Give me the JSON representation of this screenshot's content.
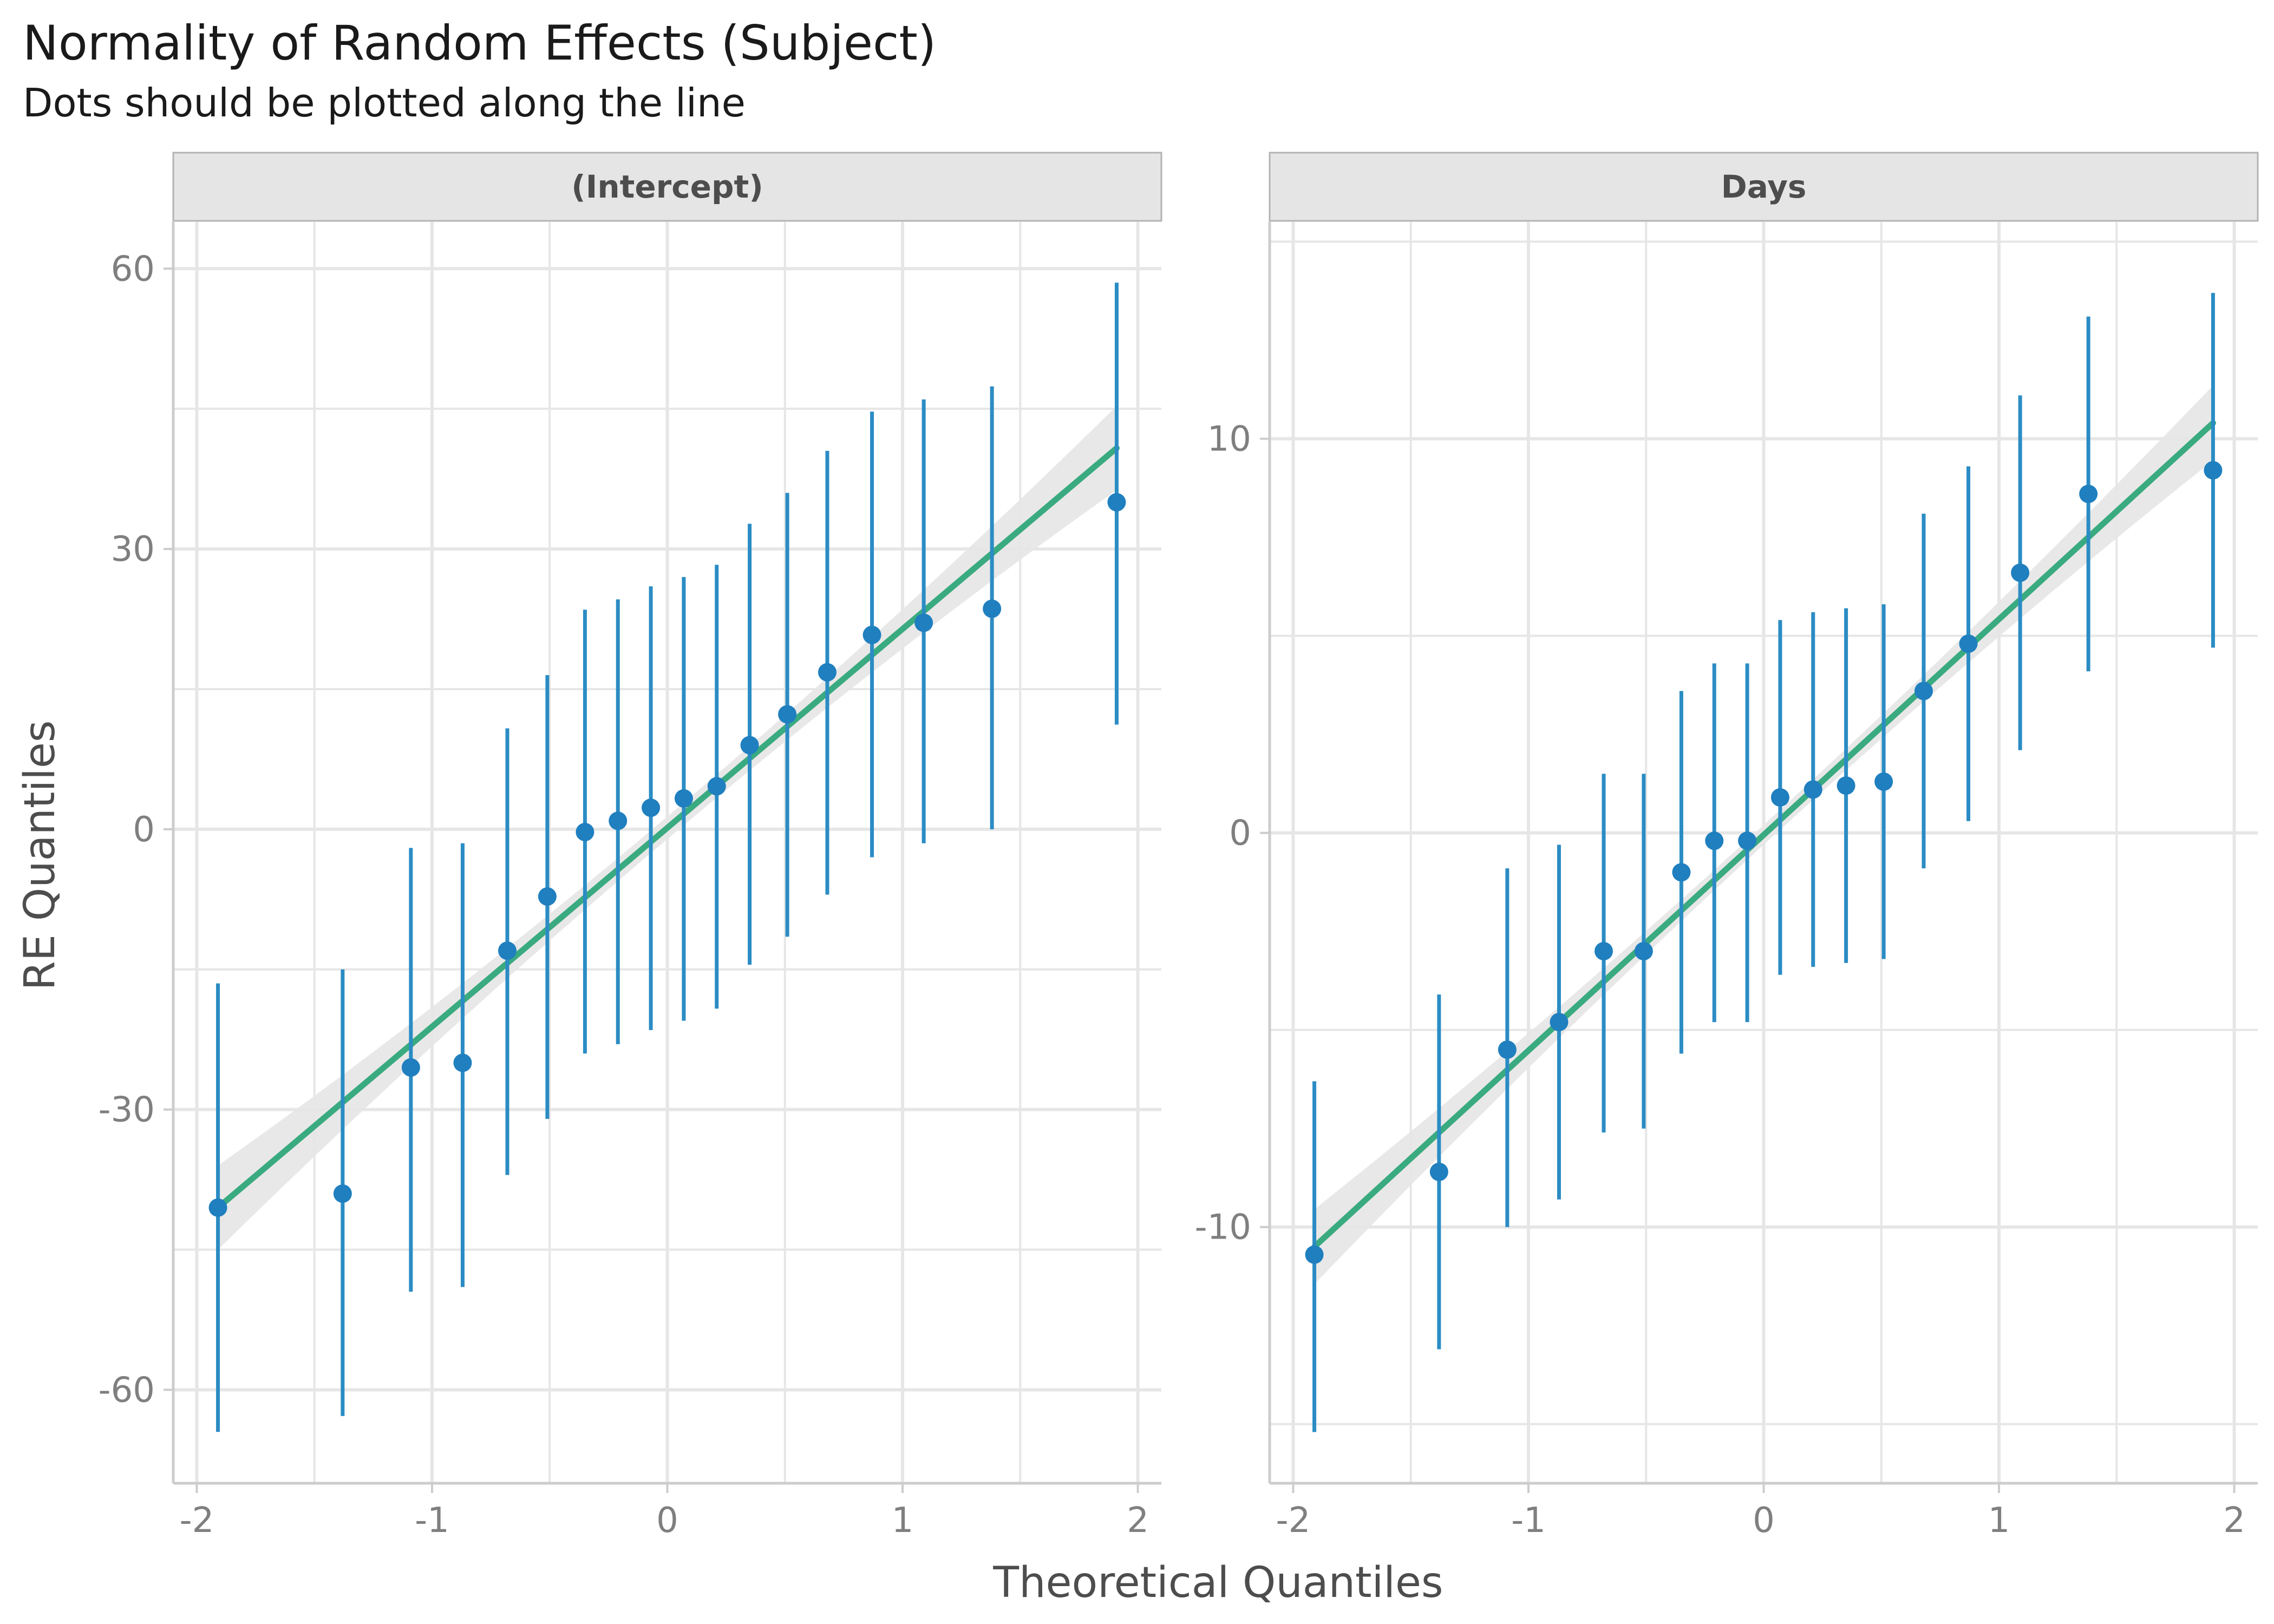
{
  "chart_data": {
    "type": "scatter",
    "title": "Normality of Random Effects (Subject)",
    "subtitle": "Dots should be plotted along the line",
    "xlabel": "Theoretical Quantiles",
    "ylabel": "RE Quantiles",
    "grid": true,
    "colors": {
      "points": "#1f7fbf",
      "errorbars": "#2b8cc4",
      "line": "#3aaa80",
      "band": "#e6e6e6",
      "strip": "#e5e5e5",
      "gridline": "#e6e6e6"
    },
    "x_ticks": [
      "-2",
      "-1",
      "0",
      "1",
      "2"
    ],
    "panels": [
      {
        "label": "(Intercept)",
        "xlim": [
          -2.1,
          2.1
        ],
        "ylim": [
          -70,
          65
        ],
        "y_ticks": [
          "60",
          "30",
          "0",
          "-30",
          "-60"
        ],
        "y_tick_values": [
          60,
          30,
          0,
          -30,
          -60
        ],
        "fit_line": {
          "x": [
            -1.91,
            1.91
          ],
          "y": [
            -40.5,
            40.8
          ]
        },
        "band_halfwidth": {
          "ends": 4.5,
          "middle": 1.2
        },
        "points": [
          {
            "x": -1.91,
            "y": -40.5,
            "lower": -64.5,
            "upper": -16.5
          },
          {
            "x": -1.38,
            "y": -39.0,
            "lower": -62.8,
            "upper": -15.0
          },
          {
            "x": -1.09,
            "y": -25.5,
            "lower": -49.5,
            "upper": -2.0
          },
          {
            "x": -0.87,
            "y": -25.0,
            "lower": -49.0,
            "upper": -1.5
          },
          {
            "x": -0.68,
            "y": -13.0,
            "lower": -37.0,
            "upper": 10.8
          },
          {
            "x": -0.51,
            "y": -7.2,
            "lower": -31.0,
            "upper": 16.5
          },
          {
            "x": -0.35,
            "y": -0.3,
            "lower": -24.0,
            "upper": 23.5
          },
          {
            "x": -0.21,
            "y": 0.9,
            "lower": -23.0,
            "upper": 24.6
          },
          {
            "x": -0.07,
            "y": 2.3,
            "lower": -21.5,
            "upper": 26.0
          },
          {
            "x": 0.07,
            "y": 3.3,
            "lower": -20.5,
            "upper": 27.0
          },
          {
            "x": 0.21,
            "y": 4.6,
            "lower": -19.2,
            "upper": 28.3
          },
          {
            "x": 0.35,
            "y": 9.0,
            "lower": -14.5,
            "upper": 32.7
          },
          {
            "x": 0.51,
            "y": 12.3,
            "lower": -11.5,
            "upper": 36.0
          },
          {
            "x": 0.68,
            "y": 16.8,
            "lower": -7.0,
            "upper": 40.5
          },
          {
            "x": 0.87,
            "y": 20.8,
            "lower": -3.0,
            "upper": 44.7
          },
          {
            "x": 1.09,
            "y": 22.1,
            "lower": -1.5,
            "upper": 46.0
          },
          {
            "x": 1.38,
            "y": 23.6,
            "lower": 0.0,
            "upper": 47.4
          },
          {
            "x": 1.91,
            "y": 35.0,
            "lower": 11.2,
            "upper": 58.5
          }
        ]
      },
      {
        "label": "Days",
        "xlim": [
          -2.1,
          2.1
        ],
        "ylim": [
          -16.5,
          15.5
        ],
        "y_ticks": [
          "10",
          "0",
          "-10"
        ],
        "y_tick_values": [
          10,
          0,
          -10
        ],
        "fit_line": {
          "x": [
            -1.91,
            1.91
          ],
          "y": [
            -10.5,
            10.4
          ]
        },
        "band_halfwidth": {
          "ends": 0.95,
          "middle": 0.25
        },
        "points": [
          {
            "x": -1.91,
            "y": -10.7,
            "lower": -15.2,
            "upper": -6.3
          },
          {
            "x": -1.38,
            "y": -8.6,
            "lower": -13.1,
            "upper": -4.1
          },
          {
            "x": -1.09,
            "y": -5.5,
            "lower": -10.0,
            "upper": -0.9
          },
          {
            "x": -0.87,
            "y": -4.8,
            "lower": -9.3,
            "upper": -0.3
          },
          {
            "x": -0.68,
            "y": -3.0,
            "lower": -7.6,
            "upper": 1.5
          },
          {
            "x": -0.51,
            "y": -3.0,
            "lower": -7.5,
            "upper": 1.5
          },
          {
            "x": -0.35,
            "y": -1.0,
            "lower": -5.6,
            "upper": 3.6
          },
          {
            "x": -0.21,
            "y": -0.2,
            "lower": -4.8,
            "upper": 4.3
          },
          {
            "x": -0.07,
            "y": -0.2,
            "lower": -4.8,
            "upper": 4.3
          },
          {
            "x": 0.07,
            "y": 0.9,
            "lower": -3.6,
            "upper": 5.4
          },
          {
            "x": 0.21,
            "y": 1.1,
            "lower": -3.4,
            "upper": 5.6
          },
          {
            "x": 0.35,
            "y": 1.2,
            "lower": -3.3,
            "upper": 5.7
          },
          {
            "x": 0.51,
            "y": 1.3,
            "lower": -3.2,
            "upper": 5.8
          },
          {
            "x": 0.68,
            "y": 3.6,
            "lower": -0.9,
            "upper": 8.1
          },
          {
            "x": 0.87,
            "y": 4.8,
            "lower": 0.3,
            "upper": 9.3
          },
          {
            "x": 1.09,
            "y": 6.6,
            "lower": 2.1,
            "upper": 11.1
          },
          {
            "x": 1.38,
            "y": 8.6,
            "lower": 4.1,
            "upper": 13.1
          },
          {
            "x": 1.91,
            "y": 9.2,
            "lower": 4.7,
            "upper": 13.7
          }
        ]
      }
    ]
  }
}
